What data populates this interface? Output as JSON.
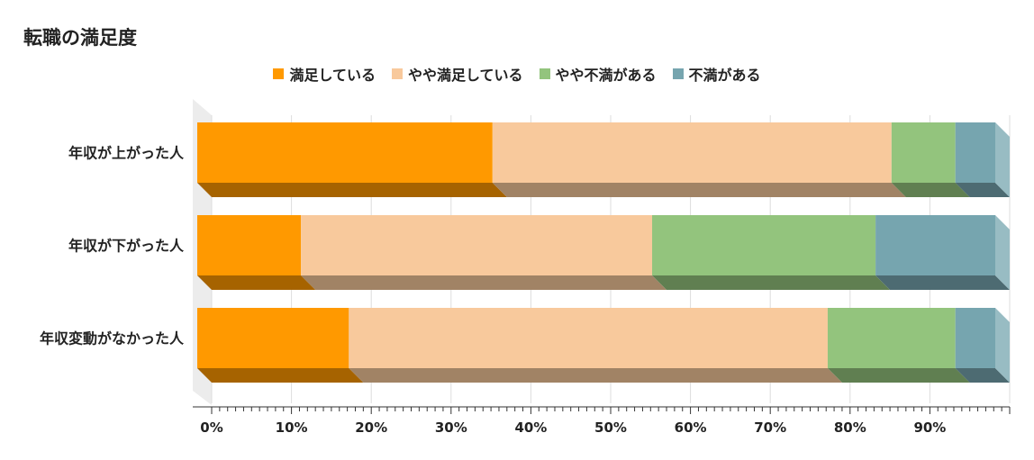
{
  "chart_data": {
    "type": "bar",
    "orientation": "horizontal",
    "stacked": true,
    "title": "転職の満足度",
    "categories": [
      "年収が上がった人",
      "年収が下がった人",
      "年収変動がなかった人"
    ],
    "series": [
      {
        "name": "満足している",
        "color": "#ff9900",
        "values": [
          37,
          13,
          19
        ]
      },
      {
        "name": "やや満足している",
        "color": "#f8c99c",
        "values": [
          50,
          44,
          60
        ]
      },
      {
        "name": "やや不満がある",
        "color": "#93c47d",
        "values": [
          8,
          28,
          16
        ]
      },
      {
        "name": "不満がある",
        "color": "#76a5af",
        "values": [
          5,
          15,
          5
        ]
      }
    ],
    "xlim": [
      0,
      100
    ],
    "x_ticks": [
      "0%",
      "10%",
      "20%",
      "30%",
      "40%",
      "50%",
      "60%",
      "70%",
      "80%",
      "90%"
    ],
    "grid": true,
    "legend_position": "top"
  }
}
